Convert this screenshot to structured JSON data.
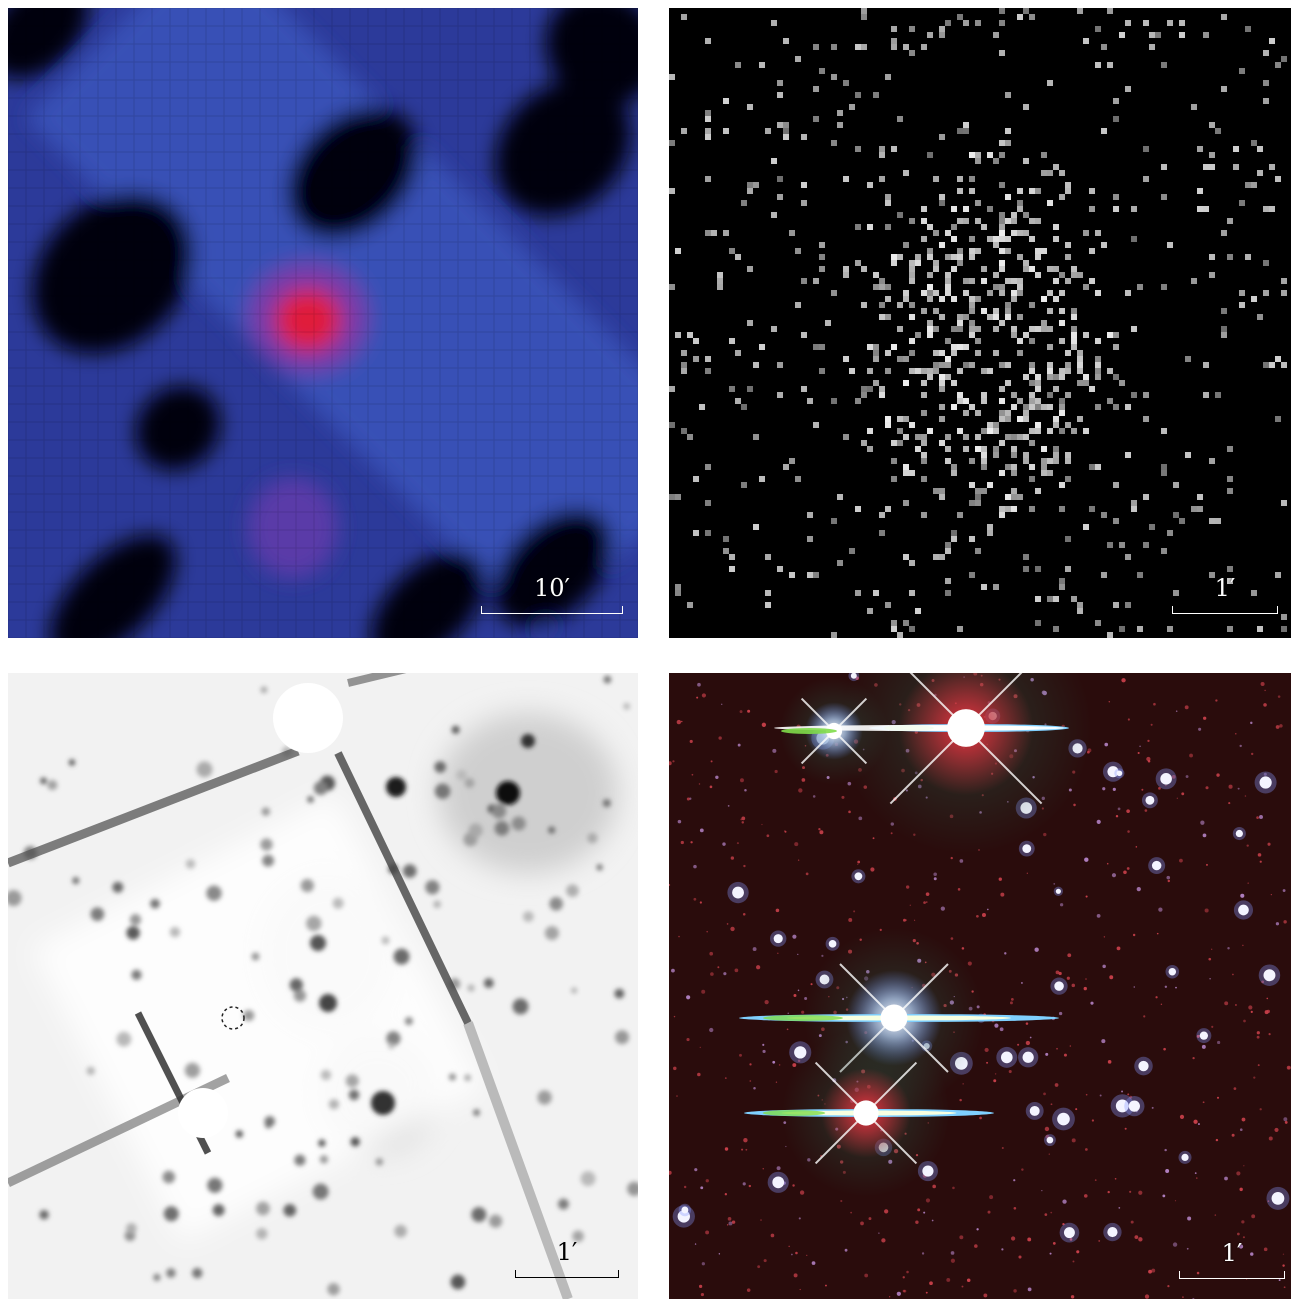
{
  "panels": [
    {
      "id": "top-left",
      "scale_label": "10′"
    },
    {
      "id": "top-right",
      "scale_label": "1′"
    },
    {
      "id": "bottom-left",
      "scale_label": "1′"
    },
    {
      "id": "bottom-right",
      "scale_label": "1′"
    }
  ]
}
